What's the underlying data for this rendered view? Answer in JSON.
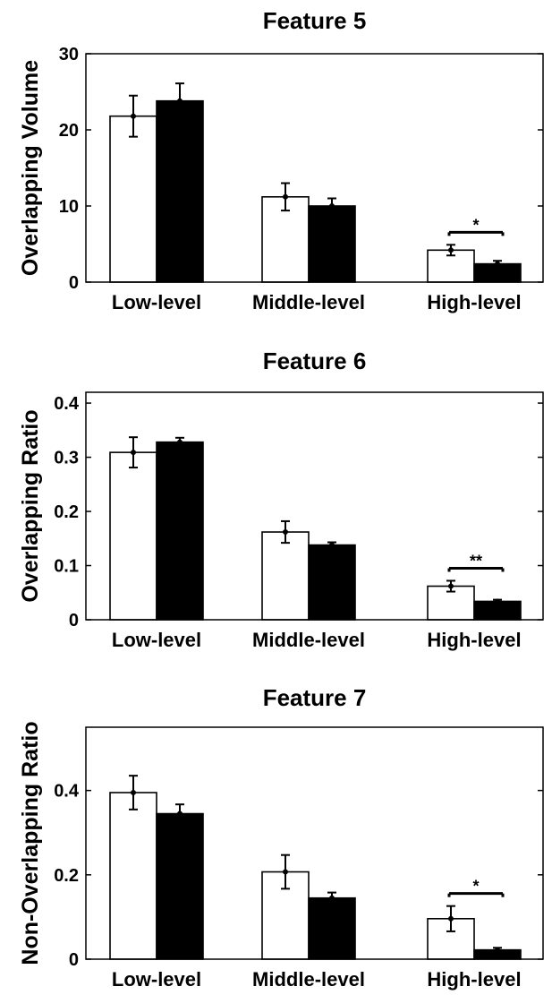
{
  "chart_data": [
    {
      "type": "bar",
      "title": "Feature 5",
      "ylabel": "Overlapping Volume",
      "categories": [
        "Low-level",
        "Middle-level",
        "High-level"
      ],
      "ylim": [
        0,
        30
      ],
      "yticks": [
        0,
        10,
        20,
        30
      ],
      "grid": false,
      "series": [
        {
          "color": "#ffffff",
          "values": [
            21.8,
            11.2,
            4.2
          ],
          "errors": [
            2.7,
            1.8,
            0.7
          ]
        },
        {
          "color": "#000000",
          "values": [
            23.8,
            10.0,
            2.4
          ],
          "errors": [
            2.3,
            1.0,
            0.4
          ]
        }
      ],
      "annotations": [
        {
          "category": "High-level",
          "text": "*"
        }
      ]
    },
    {
      "type": "bar",
      "title": "Feature 6",
      "ylabel": "Overlapping Ratio",
      "categories": [
        "Low-level",
        "Middle-level",
        "High-level"
      ],
      "ylim": [
        0,
        0.42
      ],
      "yticks": [
        0,
        0.1,
        0.2,
        0.3,
        0.4
      ],
      "ytick_labels": [
        "0",
        "0.1",
        "0.2",
        "0.3",
        "0.4"
      ],
      "grid": false,
      "series": [
        {
          "color": "#ffffff",
          "values": [
            0.309,
            0.162,
            0.062
          ],
          "errors": [
            0.028,
            0.02,
            0.01
          ]
        },
        {
          "color": "#000000",
          "values": [
            0.328,
            0.138,
            0.034
          ],
          "errors": [
            0.008,
            0.005,
            0.003
          ]
        }
      ],
      "annotations": [
        {
          "category": "High-level",
          "text": "**"
        }
      ]
    },
    {
      "type": "bar",
      "title": "Feature 7",
      "ylabel": "Non-Overlapping Ratio",
      "categories": [
        "Low-level",
        "Middle-level",
        "High-level"
      ],
      "ylim": [
        0,
        0.55
      ],
      "yticks": [
        0,
        0.2,
        0.4
      ],
      "ytick_labels": [
        "0",
        "0.2",
        "0.4"
      ],
      "grid": false,
      "series": [
        {
          "color": "#ffffff",
          "values": [
            0.395,
            0.207,
            0.096
          ],
          "errors": [
            0.04,
            0.04,
            0.03
          ]
        },
        {
          "color": "#000000",
          "values": [
            0.345,
            0.145,
            0.022
          ],
          "errors": [
            0.022,
            0.013,
            0.005
          ]
        }
      ],
      "annotations": [
        {
          "category": "High-level",
          "text": "*"
        }
      ]
    }
  ]
}
